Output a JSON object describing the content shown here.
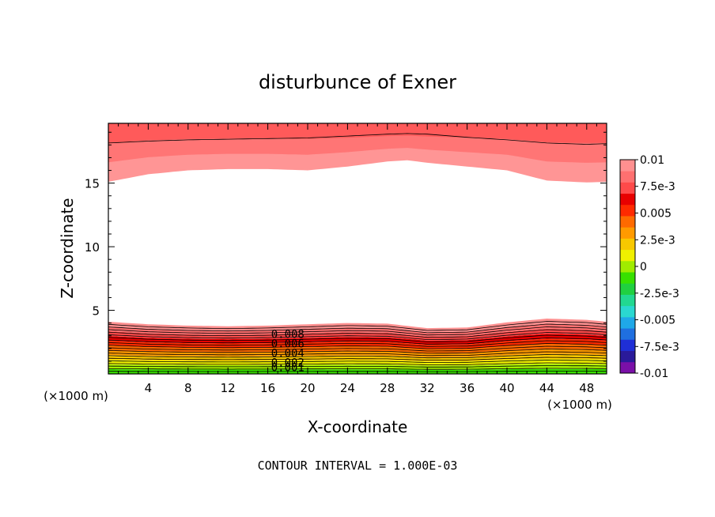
{
  "chart_data": {
    "type": "contour",
    "title": "disturbunce of Exner",
    "xlabel": "X-coordinate",
    "ylabel": "Z-coordinate",
    "x_unit_label": "(×1000 m)",
    "y_unit_label": "(×1000 m)",
    "footer": "CONTOUR INTERVAL = 1.000E-03",
    "xlim": [
      0,
      50
    ],
    "ylim": [
      0,
      19.7
    ],
    "x_ticks": [
      "4",
      "8",
      "12",
      "16",
      "20",
      "24",
      "28",
      "32",
      "36",
      "40",
      "44",
      "48"
    ],
    "x_tick_values": [
      4,
      8,
      12,
      16,
      20,
      24,
      28,
      32,
      36,
      40,
      44,
      48
    ],
    "y_ticks": [
      "5",
      "10",
      "15"
    ],
    "y_tick_values": [
      5,
      10,
      15
    ],
    "contour_labels": [
      "0.008",
      "0.006",
      "0.004",
      "0.002",
      "0.001"
    ],
    "contour_label_values": [
      0.008,
      0.006,
      0.004,
      0.002,
      0.001
    ],
    "colorbar": {
      "labels": [
        "0.01",
        "7.5e-3",
        "0.005",
        "2.5e-3",
        "0",
        "-2.5e-3",
        "-0.005",
        "-7.5e-3",
        "-0.01"
      ],
      "levels": [
        0.01,
        0.0075,
        0.005,
        0.0025,
        0,
        -0.0025,
        -0.005,
        -0.0075,
        -0.01
      ],
      "colors": [
        "#7a10a8",
        "#2a1a9a",
        "#1f2fd6",
        "#1f6fe0",
        "#1fa8e8",
        "#2ad8d0",
        "#22d890",
        "#20d040",
        "#38e000",
        "#a0ec00",
        "#f0f000",
        "#f8c800",
        "#ff9a00",
        "#ff6a00",
        "#ff2a00",
        "#e80000",
        "#ff4a4a",
        "#ff7070",
        "#ff9090"
      ]
    },
    "bottom_band": {
      "x": [
        0,
        4,
        8,
        12,
        16,
        20,
        24,
        28,
        32,
        36,
        40,
        44,
        48,
        50
      ],
      "top_height": [
        4.1,
        3.9,
        3.8,
        3.75,
        3.8,
        3.9,
        4.0,
        3.95,
        3.6,
        3.65,
        4.05,
        4.35,
        4.25,
        4.1
      ],
      "levels": [
        0.0005,
        0.001,
        0.0015,
        0.002,
        0.0025,
        0.003,
        0.0035,
        0.004,
        0.0045,
        0.005,
        0.0055,
        0.006,
        0.0065,
        0.007,
        0.0075,
        0.008,
        0.0085,
        0.009,
        0.0095
      ]
    },
    "top_band": {
      "x": [
        0,
        4,
        8,
        12,
        16,
        20,
        24,
        28,
        30,
        32,
        36,
        40,
        44,
        48,
        50
      ],
      "lower_edge": [
        15.1,
        15.7,
        16.0,
        16.1,
        16.1,
        16.0,
        16.3,
        16.7,
        16.8,
        16.6,
        16.3,
        16.0,
        15.2,
        15.05,
        15.1
      ],
      "fills": [
        "#ff5a5a",
        "#ff7575",
        "#ff9595"
      ],
      "line_height": [
        18.15,
        18.3,
        18.4,
        18.45,
        18.5,
        18.55,
        18.7,
        18.85,
        18.9,
        18.85,
        18.6,
        18.4,
        18.15,
        18.05,
        18.1
      ]
    }
  }
}
